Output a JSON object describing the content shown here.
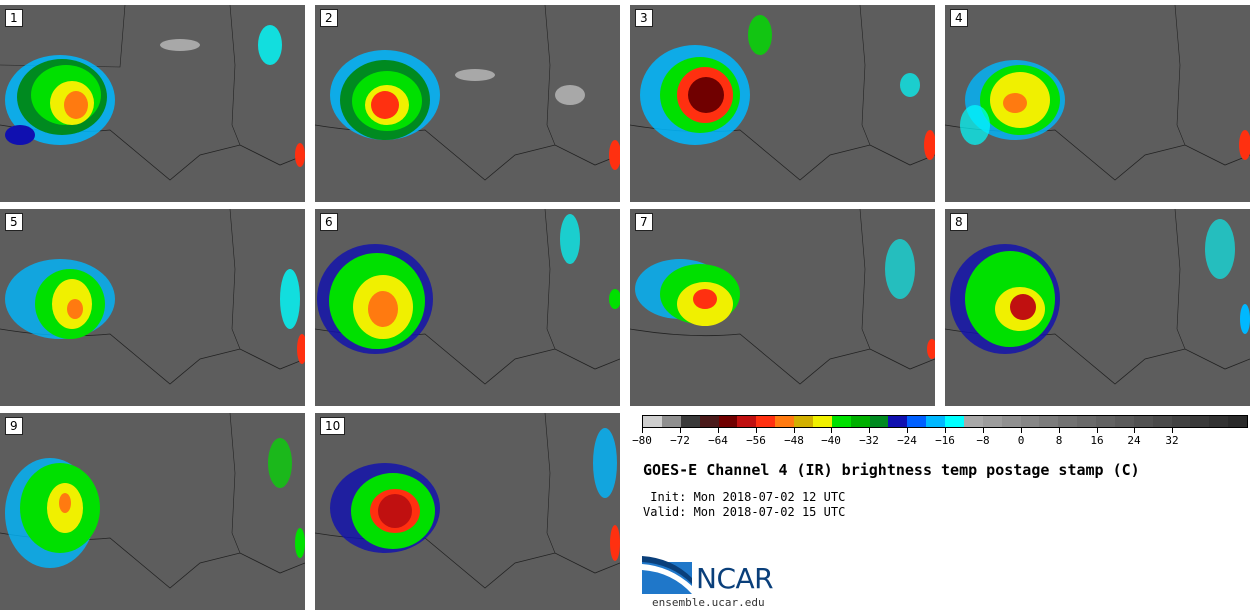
{
  "panels": [
    {
      "label": "1"
    },
    {
      "label": "2"
    },
    {
      "label": "3"
    },
    {
      "label": "4"
    },
    {
      "label": "5"
    },
    {
      "label": "6"
    },
    {
      "label": "7"
    },
    {
      "label": "8"
    },
    {
      "label": "9"
    },
    {
      "label": "10"
    }
  ],
  "colorbar": {
    "colors": [
      "#cfcfcf",
      "#8f8f8f",
      "#3a3a3a",
      "#4a1a1a",
      "#700000",
      "#c01010",
      "#ff3010",
      "#ff7a10",
      "#d2b000",
      "#f0f000",
      "#00e000",
      "#00b000",
      "#008a20",
      "#1010b0",
      "#0060ff",
      "#00b8ff",
      "#00ffff",
      "#a8a8a8",
      "#9c9c9c",
      "#909090",
      "#868686",
      "#7c7c7c",
      "#727272",
      "#6a6a6a",
      "#626262",
      "#5a5a5a",
      "#525252",
      "#4a4a4a",
      "#424242",
      "#3a3a3a",
      "#323232",
      "#2a2a2a"
    ],
    "tick_labels": [
      "−80",
      "−72",
      "−64",
      "−56",
      "−48",
      "−40",
      "−32",
      "−24",
      "−16",
      "−8",
      "0",
      "8",
      "16",
      "24",
      "32"
    ]
  },
  "title": "GOES-E Channel 4 (IR) brightness temp postage stamp (C)",
  "init_text": " Init: Mon 2018-07-02 12 UTC",
  "valid_text": "Valid: Mon 2018-07-02 15 UTC",
  "logo_text": "NCAR",
  "url": "ensemble.ucar.edu"
}
